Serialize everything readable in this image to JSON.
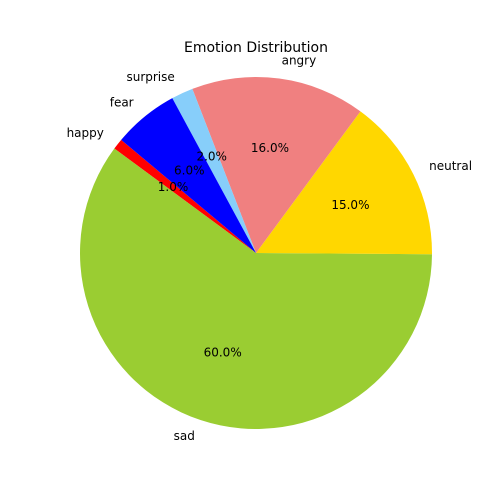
{
  "chart_data": {
    "type": "pie",
    "title": "Emotion Distribution",
    "categories": [
      "happy",
      "sad",
      "neutral",
      "angry",
      "surprise",
      "fear"
    ],
    "values": [
      1.0,
      60.0,
      15.0,
      16.0,
      2.0,
      6.0
    ],
    "value_labels": [
      "1.0%",
      "60.0%",
      "15.0%",
      "16.0%",
      "2.0%",
      "6.0%"
    ],
    "colors": [
      "#ff0000",
      "#9acd32",
      "#ffd700",
      "#f08080",
      "#87cefa",
      "#0000ff"
    ],
    "start_angle_degrees": 140,
    "direction": "counterclockwise",
    "legend": "none"
  }
}
